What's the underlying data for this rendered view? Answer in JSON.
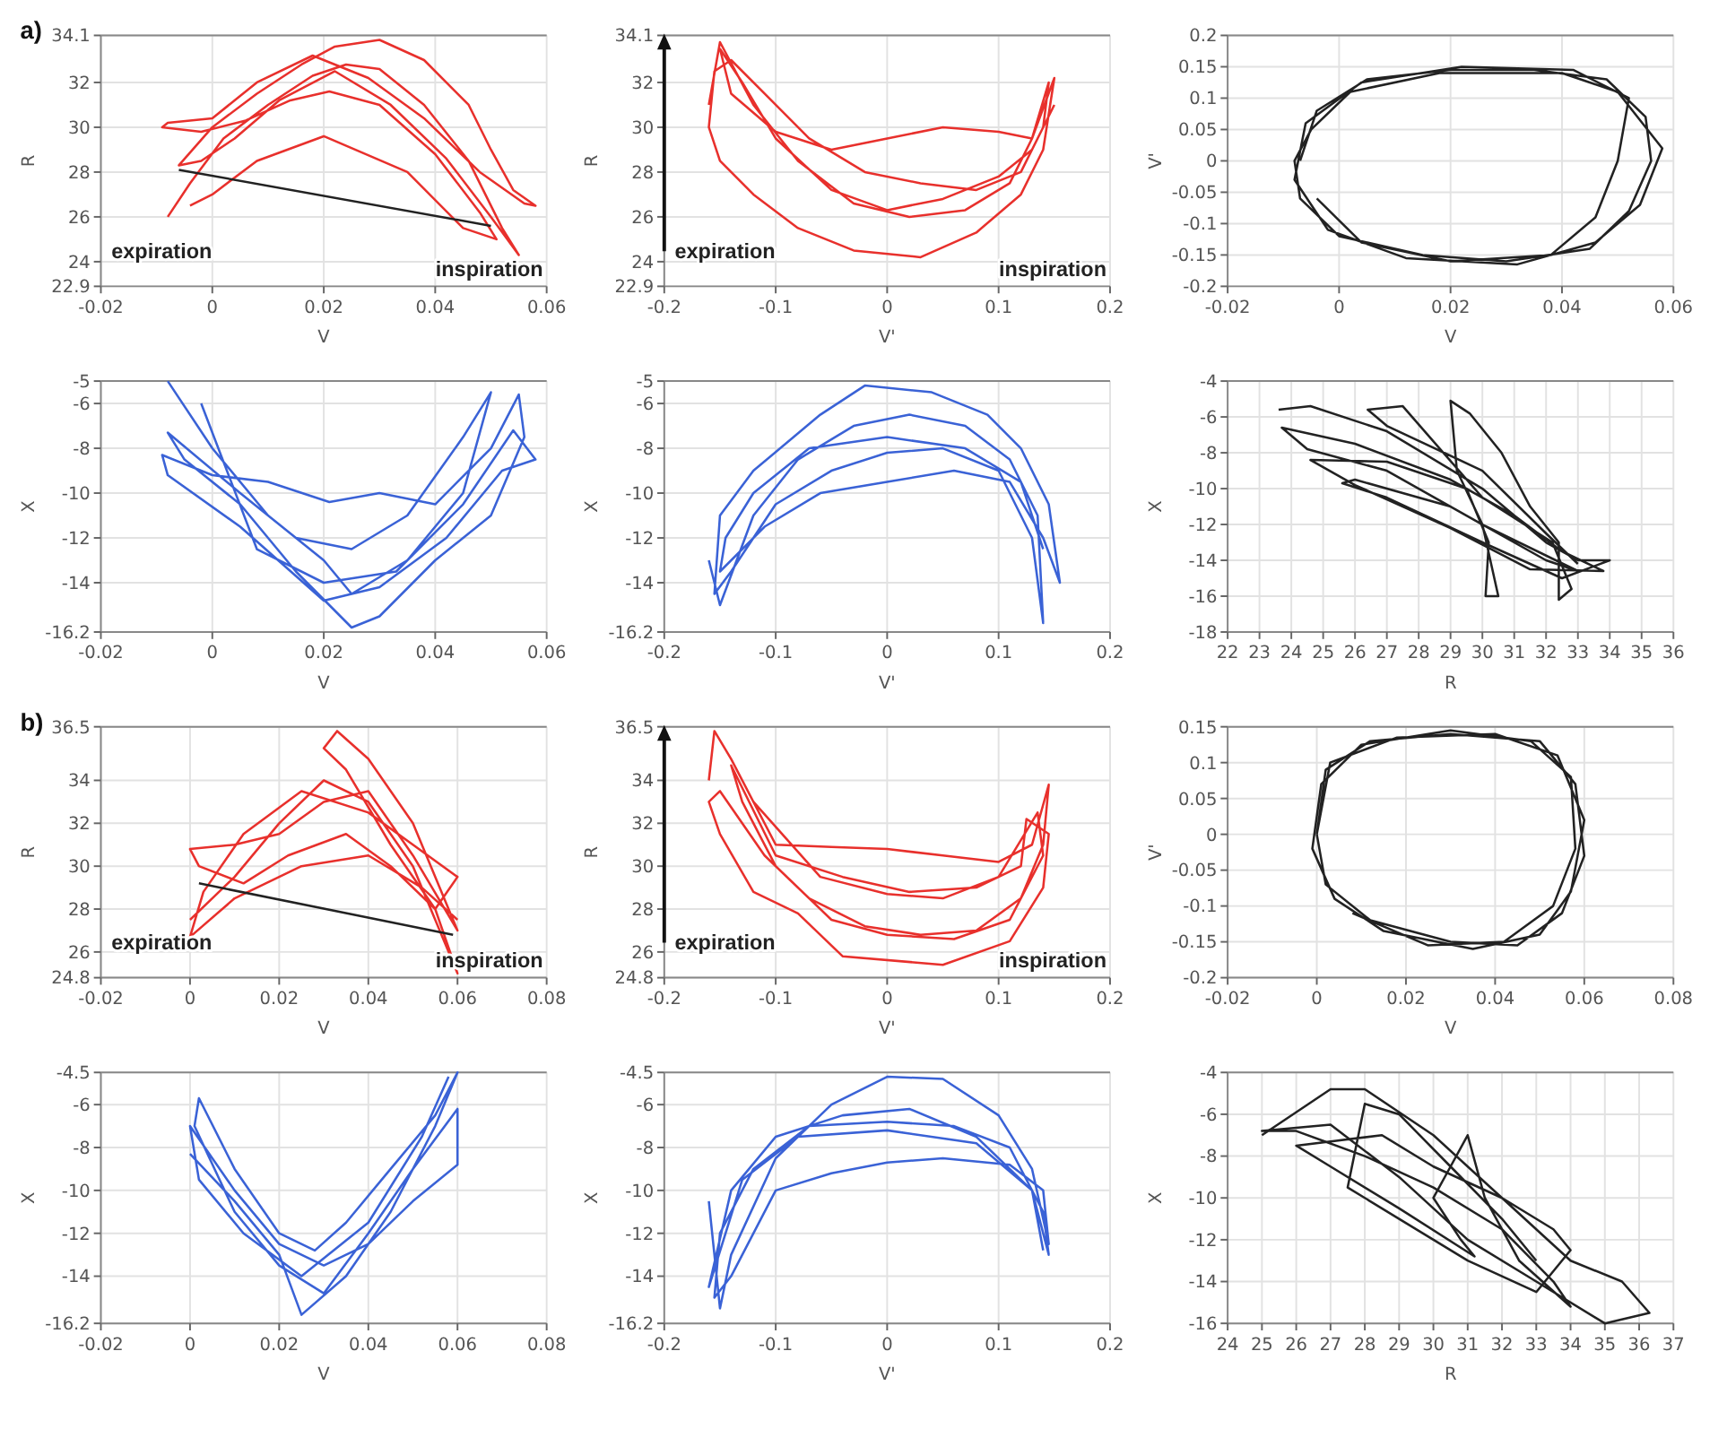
{
  "chart_data": [
    {
      "type": "line",
      "xlabel": "V",
      "ylabel": "R",
      "xlim": [
        -0.02,
        0.06
      ],
      "xticks": [
        -0.02,
        0,
        0.02,
        0.04,
        0.06
      ],
      "ylim": [
        22.9,
        34.1
      ],
      "yticks": [
        22.9,
        24,
        26,
        28,
        30,
        32,
        34.1
      ],
      "grid": true,
      "series": [
        {
          "color": "#e8302c",
          "x": [
            -0.008,
            -0.004,
            0.002,
            0.01,
            0.018,
            0.024,
            0.03,
            0.038,
            0.046,
            0.052,
            0.055,
            0.05,
            0.042,
            0.032,
            0.022,
            0.012,
            0.004,
            -0.002,
            -0.006,
            0,
            0.008,
            0.016,
            0.022,
            0.03,
            0.038,
            0.046,
            0.05,
            0.054,
            0.058,
            0.056,
            0.048,
            0.038,
            0.028,
            0.018,
            0.008,
            0.0,
            -0.008,
            -0.009,
            -0.002,
            0.006,
            0.014,
            0.021,
            0.03,
            0.04,
            0.048,
            0.051,
            0.045,
            0.035,
            0.02,
            0.008,
            0,
            -0.004
          ],
          "values": [
            26,
            27.5,
            29.5,
            31,
            32.3,
            32.8,
            32.6,
            31,
            28.5,
            25.5,
            24.3,
            26,
            28.6,
            31,
            32.5,
            31.2,
            29.5,
            28.5,
            28.3,
            30,
            31.5,
            32.8,
            33.6,
            33.9,
            33,
            31,
            29,
            27.2,
            26.5,
            26.6,
            28,
            30.4,
            32.2,
            33.2,
            32,
            30.4,
            30.2,
            30,
            29.8,
            30.3,
            31.2,
            31.6,
            31,
            28.8,
            26.2,
            25,
            25.5,
            28,
            29.6,
            28.5,
            27,
            26.5
          ]
        },
        {
          "type": "line",
          "color": "#222222",
          "x": [
            -0.006,
            0.05
          ],
          "values": [
            28.1,
            25.6
          ]
        }
      ],
      "annotations": [
        "a)",
        "expiration",
        "inspiration"
      ]
    },
    {
      "type": "line",
      "xlabel": "V'",
      "ylabel": "R",
      "xlim": [
        -0.2,
        0.2
      ],
      "xticks": [
        -0.2,
        -0.1,
        0,
        0.1,
        0.2
      ],
      "ylim": [
        22.9,
        34.1
      ],
      "yticks": [
        22.9,
        24,
        26,
        28,
        30,
        32,
        34.1
      ],
      "grid": true,
      "series": [
        {
          "color": "#e8302c",
          "x": [
            -0.16,
            -0.15,
            -0.12,
            -0.08,
            -0.03,
            0.02,
            0.07,
            0.11,
            0.13,
            0.145,
            0.14,
            0.12,
            0.08,
            0.03,
            -0.02,
            -0.07,
            -0.11,
            -0.14,
            -0.155,
            -0.16,
            -0.15,
            -0.12,
            -0.08,
            -0.03,
            0.03,
            0.08,
            0.12,
            0.14,
            0.15,
            0.13,
            0.1,
            0.05,
            0,
            -0.05,
            -0.1,
            -0.14,
            -0.15,
            -0.13,
            -0.1,
            -0.05,
            0,
            0.05,
            0.1,
            0.13,
            0.15
          ],
          "values": [
            31,
            33.8,
            31,
            28.5,
            26.6,
            26,
            26.3,
            27.5,
            29.5,
            32,
            30,
            28,
            27.2,
            27.5,
            28,
            29.5,
            31.5,
            33,
            32.5,
            30,
            28.5,
            27,
            25.5,
            24.5,
            24.2,
            25.3,
            27,
            29,
            32.2,
            29.5,
            29.8,
            30,
            29.5,
            29,
            29.8,
            31.5,
            33.5,
            32,
            29.5,
            27.2,
            26.3,
            26.8,
            27.8,
            29,
            31
          ]
        }
      ],
      "annotations": [
        "expiration",
        "inspiration"
      ]
    },
    {
      "type": "line",
      "xlabel": "V",
      "ylabel": "V'",
      "xlim": [
        -0.02,
        0.06
      ],
      "xticks": [
        -0.02,
        0,
        0.02,
        0.04,
        0.06
      ],
      "ylim": [
        -0.2,
        0.2
      ],
      "yticks": [
        -0.2,
        -0.15,
        -0.1,
        -0.05,
        0,
        0.05,
        0.1,
        0.15,
        0.2
      ],
      "grid": true,
      "series": [
        {
          "color": "#222222",
          "x": [
            -0.007,
            -0.004,
            0.005,
            0.02,
            0.035,
            0.048,
            0.055,
            0.056,
            0.052,
            0.045,
            0.03,
            0.015,
            0.0,
            -0.007,
            -0.008,
            -0.005,
            0.002,
            0.018,
            0.04,
            0.05,
            0.058,
            0.054,
            0.046,
            0.032,
            0.012,
            -0.002,
            -0.008,
            -0.006,
            0.004,
            0.022,
            0.042,
            0.052,
            0.05,
            0.046,
            0.038,
            0.02,
            0.004,
            -0.004
          ],
          "values": [
            0,
            0.08,
            0.13,
            0.145,
            0.145,
            0.13,
            0.07,
            0,
            -0.08,
            -0.14,
            -0.16,
            -0.15,
            -0.12,
            -0.06,
            0,
            0.05,
            0.11,
            0.14,
            0.14,
            0.11,
            0.02,
            -0.07,
            -0.13,
            -0.165,
            -0.155,
            -0.11,
            -0.03,
            0.06,
            0.125,
            0.15,
            0.145,
            0.1,
            0,
            -0.09,
            -0.15,
            -0.16,
            -0.13,
            -0.06
          ]
        }
      ]
    },
    {
      "type": "line",
      "xlabel": "V",
      "ylabel": "X",
      "xlim": [
        -0.02,
        0.06
      ],
      "xticks": [
        -0.02,
        0,
        0.02,
        0.04,
        0.06
      ],
      "ylim": [
        -16.2,
        -5
      ],
      "yticks": [
        -16.2,
        -14,
        -12,
        -10,
        -8,
        -6,
        -5
      ],
      "grid": true,
      "series": [
        {
          "color": "#3a62d6",
          "x": [
            -0.008,
            0,
            0.01,
            0.02,
            0.025,
            0.035,
            0.045,
            0.05,
            0.045,
            0.035,
            0.025,
            0.015,
            0.005,
            -0.008,
            -0.005,
            0.005,
            0.015,
            0.025,
            0.03,
            0.04,
            0.05,
            0.056,
            0.055,
            0.05,
            0.04,
            0.03,
            0.021,
            0.01,
            0,
            -0.009,
            -0.008,
            0.005,
            0.02,
            0.03,
            0.042,
            0.052,
            0.058,
            0.054,
            0.045,
            0.033,
            0.02,
            0.008,
            -0.002
          ],
          "values": [
            -5,
            -8,
            -11,
            -13,
            -14.5,
            -13,
            -10,
            -5.5,
            -7.5,
            -11,
            -12.5,
            -12,
            -10,
            -7.3,
            -8.5,
            -10.5,
            -13.5,
            -16,
            -15.5,
            -13,
            -11,
            -7.5,
            -5.6,
            -8,
            -10.5,
            -10,
            -10.4,
            -9.5,
            -9.2,
            -8.3,
            -9.2,
            -11.5,
            -14.8,
            -14.2,
            -12,
            -9,
            -8.5,
            -7.2,
            -10.5,
            -13.5,
            -14,
            -12.5,
            -6
          ]
        }
      ]
    },
    {
      "type": "line",
      "xlabel": "V'",
      "ylabel": "X",
      "xlim": [
        -0.2,
        0.2
      ],
      "xticks": [
        -0.2,
        -0.1,
        0,
        0.1,
        0.2
      ],
      "ylim": [
        -16.2,
        -5
      ],
      "yticks": [
        -16.2,
        -14,
        -12,
        -10,
        -8,
        -6,
        -5
      ],
      "grid": true,
      "series": [
        {
          "color": "#3a62d6",
          "x": [
            -0.16,
            -0.15,
            -0.12,
            -0.08,
            -0.03,
            0.02,
            0.07,
            0.11,
            0.135,
            0.14,
            0.13,
            0.1,
            0.05,
            0,
            -0.05,
            -0.1,
            -0.14,
            -0.155,
            -0.15,
            -0.12,
            -0.06,
            -0.02,
            0.04,
            0.09,
            0.12,
            0.145,
            0.155,
            0.14,
            0.11,
            0.06,
            0,
            -0.06,
            -0.11,
            -0.15,
            -0.145,
            -0.12,
            -0.07,
            0,
            0.07,
            0.12,
            0.14
          ],
          "values": [
            -13,
            -15,
            -11,
            -8.5,
            -7,
            -6.5,
            -7,
            -8.5,
            -11,
            -15.8,
            -12,
            -9,
            -8,
            -8.2,
            -9,
            -10.5,
            -13.5,
            -14.5,
            -11,
            -9,
            -6.5,
            -5.2,
            -5.5,
            -6.5,
            -8,
            -10.5,
            -14,
            -12,
            -9.5,
            -9,
            -9.5,
            -10,
            -11.5,
            -13.5,
            -12,
            -10,
            -8,
            -7.5,
            -8,
            -9.5,
            -12.5
          ]
        }
      ]
    },
    {
      "type": "line",
      "xlabel": "R",
      "ylabel": "X",
      "xlim": [
        22,
        36
      ],
      "xticks": [
        22,
        23,
        24,
        25,
        26,
        27,
        28,
        29,
        30,
        31,
        32,
        33,
        34,
        35,
        36
      ],
      "ylim": [
        -18,
        -4
      ],
      "yticks": [
        -18,
        -16,
        -14,
        -12,
        -10,
        -8,
        -6,
        -4
      ],
      "grid": true,
      "series": [
        {
          "color": "#222222",
          "x": [
            23.6,
            24.6,
            27,
            30,
            32,
            33,
            34,
            32.5,
            30,
            27,
            25.6,
            26,
            29,
            32,
            33,
            30,
            27,
            24.5,
            23.7,
            26,
            29,
            31,
            32.5,
            33.8,
            31.5,
            29,
            26,
            24.6,
            27,
            29.5,
            30.2,
            30.1,
            30.5,
            30,
            29.2,
            29,
            29.6,
            30.6,
            31.5,
            32.4,
            32.4,
            32.8,
            32.2,
            30,
            27.5,
            26.4,
            27,
            30,
            32,
            33
          ],
          "values": [
            -5.6,
            -5.4,
            -6.8,
            -10,
            -13,
            -14,
            -14,
            -15,
            -13,
            -10.5,
            -9.7,
            -9.5,
            -11,
            -14,
            -14.6,
            -12,
            -9,
            -7.8,
            -6.6,
            -7.5,
            -9.5,
            -11.5,
            -13.5,
            -14.6,
            -14.5,
            -12.2,
            -9.8,
            -8.4,
            -8.5,
            -10,
            -13,
            -16,
            -16,
            -12,
            -9,
            -5.1,
            -5.8,
            -8,
            -11,
            -13,
            -16.2,
            -15.6,
            -13,
            -10.5,
            -5.4,
            -5.6,
            -6.5,
            -9,
            -12.5,
            -14.2
          ]
        }
      ]
    },
    {
      "type": "line",
      "xlabel": "V",
      "ylabel": "R",
      "xlim": [
        -0.02,
        0.08
      ],
      "xticks": [
        -0.02,
        0,
        0.02,
        0.04,
        0.06,
        0.08
      ],
      "ylim": [
        24.8,
        36.5
      ],
      "yticks": [
        24.8,
        26,
        28,
        30,
        32,
        34,
        36.5
      ],
      "grid": true,
      "series": [
        {
          "color": "#e8302c",
          "x": [
            0,
            0.01,
            0.02,
            0.03,
            0.04,
            0.05,
            0.058,
            0.06,
            0.055,
            0.045,
            0.035,
            0.03,
            0.033,
            0.04,
            0.05,
            0.058,
            0.06,
            0.05,
            0.04,
            0.03,
            0.02,
            0.01,
            0,
            0.002,
            0.012,
            0.022,
            0.035,
            0.045,
            0.055,
            0.06,
            0.05,
            0.04,
            0.025,
            0.012,
            0.003,
            0,
            0.01,
            0.025,
            0.04,
            0.052,
            0.06
          ],
          "values": [
            27.5,
            29.5,
            32,
            34,
            33,
            30,
            26,
            25,
            28,
            31,
            34.5,
            35.5,
            36.3,
            35,
            32,
            28,
            27,
            30.5,
            33.5,
            33,
            31.5,
            31,
            30.8,
            30,
            29.2,
            30.5,
            31.5,
            30,
            28,
            29.5,
            31,
            32.5,
            33.5,
            31.5,
            28.8,
            26.7,
            28.5,
            30,
            30.5,
            29,
            27.5
          ]
        },
        {
          "type": "line",
          "color": "#222222",
          "x": [
            0.002,
            0.059
          ],
          "values": [
            29.2,
            26.8
          ]
        }
      ],
      "annotations": [
        "b)",
        "expiration",
        "inspiration"
      ]
    },
    {
      "type": "line",
      "xlabel": "V'",
      "ylabel": "R",
      "xlim": [
        -0.2,
        0.2
      ],
      "xticks": [
        -0.2,
        -0.1,
        0,
        0.1,
        0.2
      ],
      "ylim": [
        24.8,
        36.5
      ],
      "yticks": [
        24.8,
        26,
        28,
        30,
        32,
        34,
        36.5
      ],
      "grid": true,
      "series": [
        {
          "color": "#e8302c",
          "x": [
            -0.16,
            -0.155,
            -0.14,
            -0.1,
            -0.05,
            0,
            0.05,
            0.1,
            0.13,
            0.145,
            0.14,
            0.12,
            0.08,
            0.03,
            -0.02,
            -0.07,
            -0.11,
            -0.15,
            -0.16,
            -0.15,
            -0.12,
            -0.08,
            -0.04,
            0.05,
            0.11,
            0.14,
            0.145,
            0.125,
            0.12,
            0.08,
            0.02,
            -0.04,
            -0.1,
            -0.14,
            -0.13,
            -0.1,
            -0.05,
            0,
            0.06,
            0.11,
            0.14,
            0.135,
            0.1,
            0.05,
            0,
            -0.06,
            -0.12
          ],
          "values": [
            34,
            36.3,
            35,
            31,
            30.9,
            30.8,
            30.5,
            30.2,
            31,
            33.8,
            31,
            28.5,
            27,
            26.8,
            27.2,
            28.5,
            30.5,
            33.5,
            33,
            31.5,
            28.8,
            27.8,
            25.8,
            25.4,
            26.5,
            29,
            31.5,
            32.2,
            30,
            29,
            28.8,
            29.5,
            30.5,
            34.7,
            33,
            30,
            27.5,
            26.8,
            26.6,
            27.5,
            30.5,
            32.5,
            29.5,
            28.5,
            28.7,
            29.5,
            33
          ]
        }
      ],
      "annotations": [
        "expiration",
        "inspiration"
      ]
    },
    {
      "type": "line",
      "xlabel": "V",
      "ylabel": "V'",
      "xlim": [
        -0.02,
        0.08
      ],
      "xticks": [
        -0.02,
        0,
        0.02,
        0.04,
        0.06,
        0.08
      ],
      "ylim": [
        -0.2,
        0.15
      ],
      "yticks": [
        -0.2,
        -0.15,
        -0.1,
        -0.05,
        0,
        0.05,
        0.1,
        0.15
      ],
      "grid": true,
      "series": [
        {
          "color": "#222222",
          "x": [
            0,
            0.002,
            0.012,
            0.03,
            0.05,
            0.058,
            0.06,
            0.055,
            0.045,
            0.03,
            0.012,
            0.002,
            0,
            0.003,
            0.018,
            0.04,
            0.054,
            0.06,
            0.057,
            0.05,
            0.035,
            0.015,
            0.004,
            -0.001,
            0.001,
            0.01,
            0.03,
            0.048,
            0.057,
            0.058,
            0.053,
            0.042,
            0.025,
            0.008
          ],
          "values": [
            0,
            0.09,
            0.13,
            0.14,
            0.13,
            0.07,
            -0.03,
            -0.11,
            -0.155,
            -0.15,
            -0.12,
            -0.07,
            0,
            0.1,
            0.135,
            0.14,
            0.11,
            0.02,
            -0.08,
            -0.14,
            -0.16,
            -0.135,
            -0.09,
            -0.02,
            0.07,
            0.125,
            0.145,
            0.13,
            0.08,
            -0.02,
            -0.1,
            -0.15,
            -0.155,
            -0.11
          ]
        }
      ]
    },
    {
      "type": "line",
      "xlabel": "V",
      "ylabel": "X",
      "xlim": [
        -0.02,
        0.08
      ],
      "xticks": [
        -0.02,
        0,
        0.02,
        0.04,
        0.06,
        0.08
      ],
      "ylim": [
        -16.2,
        -4.5
      ],
      "yticks": [
        -16.2,
        -14,
        -12,
        -10,
        -8,
        -6,
        -4.5
      ],
      "grid": true,
      "series": [
        {
          "color": "#3a62d6",
          "x": [
            0,
            0.01,
            0.02,
            0.025,
            0.035,
            0.045,
            0.055,
            0.06,
            0.055,
            0.045,
            0.035,
            0.028,
            0.02,
            0.01,
            0.002,
            0.001,
            0.01,
            0.02,
            0.03,
            0.04,
            0.05,
            0.06,
            0.06,
            0.05,
            0.04,
            0.03,
            0.02,
            0.01,
            0,
            0.002,
            0.012,
            0.025,
            0.04,
            0.052,
            0.058
          ],
          "values": [
            -8.3,
            -10.5,
            -13,
            -15.8,
            -14,
            -11,
            -7,
            -4.5,
            -6.5,
            -9,
            -11.5,
            -12.8,
            -12,
            -9,
            -5.7,
            -7,
            -11,
            -13.5,
            -14.8,
            -12,
            -9,
            -6.2,
            -8.8,
            -10.5,
            -12.5,
            -13.5,
            -12.5,
            -10,
            -7,
            -9.5,
            -12,
            -14,
            -11.5,
            -7.5,
            -4.7
          ]
        }
      ]
    },
    {
      "type": "line",
      "xlabel": "V'",
      "ylabel": "X",
      "xlim": [
        -0.2,
        0.2
      ],
      "xticks": [
        -0.2,
        -0.1,
        0,
        0.1,
        0.2
      ],
      "ylim": [
        -16.2,
        -4.5
      ],
      "yticks": [
        -16.2,
        -14,
        -12,
        -10,
        -8,
        -6,
        -4.5
      ],
      "grid": true,
      "series": [
        {
          "color": "#3a62d6",
          "x": [
            -0.16,
            -0.15,
            -0.14,
            -0.1,
            -0.05,
            0,
            0.05,
            0.1,
            0.13,
            0.145,
            0.14,
            0.11,
            0.05,
            0,
            -0.05,
            -0.1,
            -0.14,
            -0.155,
            -0.15,
            -0.12,
            -0.07,
            0,
            0.06,
            0.11,
            0.14,
            0.145,
            0.13,
            0.08,
            0.02,
            -0.04,
            -0.1,
            -0.14,
            -0.16,
            -0.13,
            -0.08,
            0,
            0.08,
            0.13,
            0.14
          ],
          "values": [
            -10.5,
            -15.5,
            -13,
            -8.5,
            -6,
            -4.7,
            -4.8,
            -6.5,
            -9,
            -12.5,
            -10,
            -8.8,
            -8.5,
            -8.7,
            -9.2,
            -10,
            -14,
            -15,
            -12,
            -9,
            -7,
            -6.8,
            -7,
            -8,
            -11,
            -13,
            -10,
            -7.5,
            -6.2,
            -6.5,
            -7.5,
            -10,
            -14.5,
            -9.5,
            -7.5,
            -7.2,
            -7.8,
            -10,
            -12.8
          ]
        }
      ]
    },
    {
      "type": "line",
      "xlabel": "R",
      "ylabel": "X",
      "xlim": [
        24,
        37
      ],
      "xticks": [
        24,
        25,
        26,
        27,
        28,
        29,
        30,
        31,
        32,
        33,
        34,
        35,
        36,
        37
      ],
      "ylim": [
        -16,
        -4
      ],
      "yticks": [
        -16,
        -14,
        -12,
        -10,
        -8,
        -6,
        -4
      ],
      "grid": true,
      "series": [
        {
          "color": "#222222",
          "x": [
            25,
            27,
            28,
            30,
            32,
            34,
            35.5,
            36.3,
            35,
            33,
            31,
            29,
            27,
            25,
            26,
            28,
            30,
            32,
            33.5,
            34,
            32.5,
            31.5,
            31,
            30.5,
            30,
            30.8,
            31.2,
            29,
            27,
            26,
            28.5,
            30,
            32,
            33.5,
            34,
            33,
            31,
            29,
            27.5,
            28,
            29,
            30.5,
            32,
            33
          ],
          "values": [
            -7,
            -4.8,
            -4.8,
            -7,
            -10,
            -13,
            -14,
            -15.5,
            -16,
            -14,
            -12,
            -9,
            -6.5,
            -6.8,
            -6.8,
            -8,
            -9.5,
            -11.5,
            -14,
            -15.2,
            -13,
            -10,
            -7,
            -8.5,
            -10,
            -12,
            -12.8,
            -10.5,
            -8.5,
            -7.5,
            -7,
            -8.5,
            -10,
            -11.5,
            -12.5,
            -14.5,
            -13,
            -11,
            -9.5,
            -5.5,
            -6,
            -8.5,
            -11,
            -13
          ]
        }
      ]
    }
  ]
}
